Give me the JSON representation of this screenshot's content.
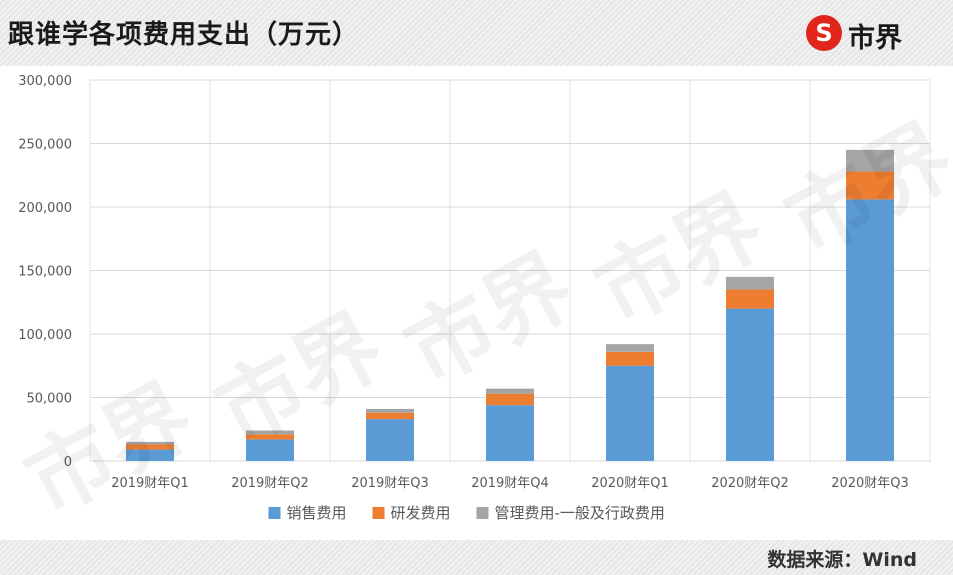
{
  "header": {
    "title": "跟谁学各项费用支出（万元）",
    "brand_text": "市界",
    "brand_mark": "S"
  },
  "footer": {
    "source": "数据来源：Wind"
  },
  "watermark_text": "市界",
  "colors": {
    "sales": "#5b9bd5",
    "rnd": "#ed7d31",
    "admin": "#a5a5a5",
    "brand": "#e1251b"
  },
  "chart_data": {
    "type": "bar",
    "stacked": true,
    "categories": [
      "2019财年Q1",
      "2019财年Q2",
      "2019财年Q3",
      "2019财年Q4",
      "2020财年Q1",
      "2020财年Q2",
      "2020财年Q3"
    ],
    "series": [
      {
        "name": "销售费用",
        "values": [
          9000,
          17000,
          33000,
          44000,
          75000,
          120000,
          206000
        ]
      },
      {
        "name": "研发费用",
        "values": [
          4000,
          4000,
          5000,
          9000,
          11000,
          15000,
          22000
        ]
      },
      {
        "name": "管理费用-一般及行政费用",
        "values": [
          2000,
          3000,
          3000,
          4000,
          6000,
          10000,
          17000
        ]
      }
    ],
    "y_ticks": [
      "0",
      "50,000",
      "100,000",
      "150,000",
      "200,000",
      "250,000",
      "300,000"
    ],
    "ylim": [
      0,
      300000
    ],
    "grid": true,
    "legend_position": "bottom"
  }
}
